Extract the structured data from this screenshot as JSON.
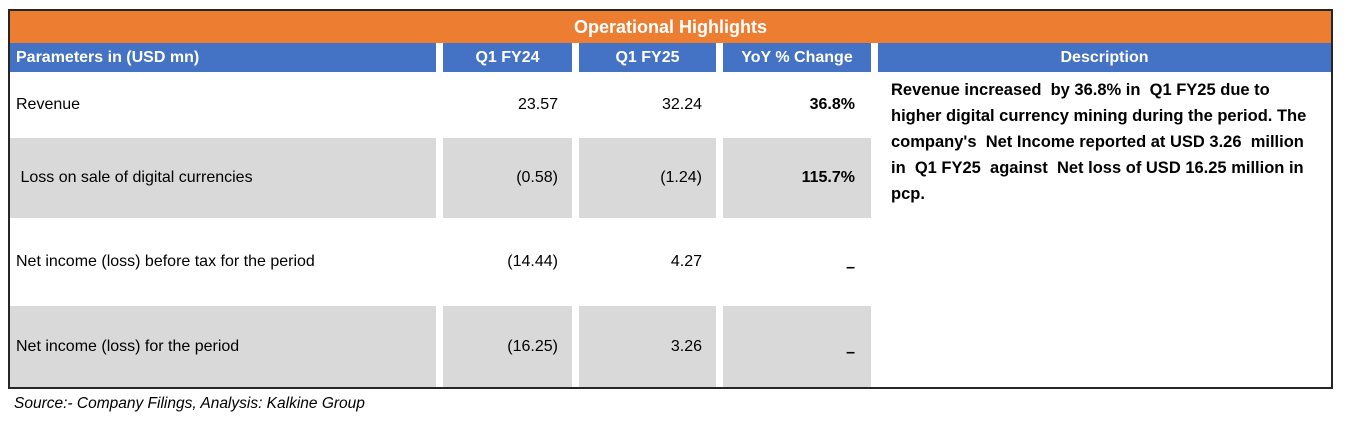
{
  "table": {
    "title": "Operational Highlights",
    "header": {
      "parameters": "Parameters in (USD mn)",
      "q1fy24": "Q1 FY24",
      "q1fy25": "Q1 FY25",
      "yoy": "YoY % Change",
      "description": "Description"
    },
    "rows": [
      {
        "label": "Revenue",
        "q1fy24": "23.57",
        "q1fy25": "32.24",
        "yoy": "36.8%"
      },
      {
        "label": " Loss on sale of digital currencies",
        "q1fy24": "(0.58)",
        "q1fy25": "(1.24)",
        "yoy": "115.7%"
      },
      {
        "label": "Net income (loss) before tax for the period",
        "q1fy24": "(14.44)",
        "q1fy25": "4.27",
        "yoy": "–"
      },
      {
        "label": "Net income (loss) for the period",
        "q1fy24": "(16.25)",
        "q1fy25": "3.26",
        "yoy": "–"
      }
    ],
    "description_text": "Revenue increased  by 36.8% in  Q1 FY25 due to higher digital currency mining during the period. The company's  Net Income reported at USD 3.26  million in  Q1 FY25  against  Net loss of USD 16.25 million in pcp."
  },
  "footer": {
    "source": "Source:- Company Filings, Analysis: Kalkine Group"
  },
  "colors": {
    "accent_orange": "#ED7D31",
    "accent_blue": "#4472C4",
    "row_grey": "#D9D9D9",
    "border_black": "#262626",
    "header_text": "#FFFFFF",
    "body_text": "#000000"
  }
}
